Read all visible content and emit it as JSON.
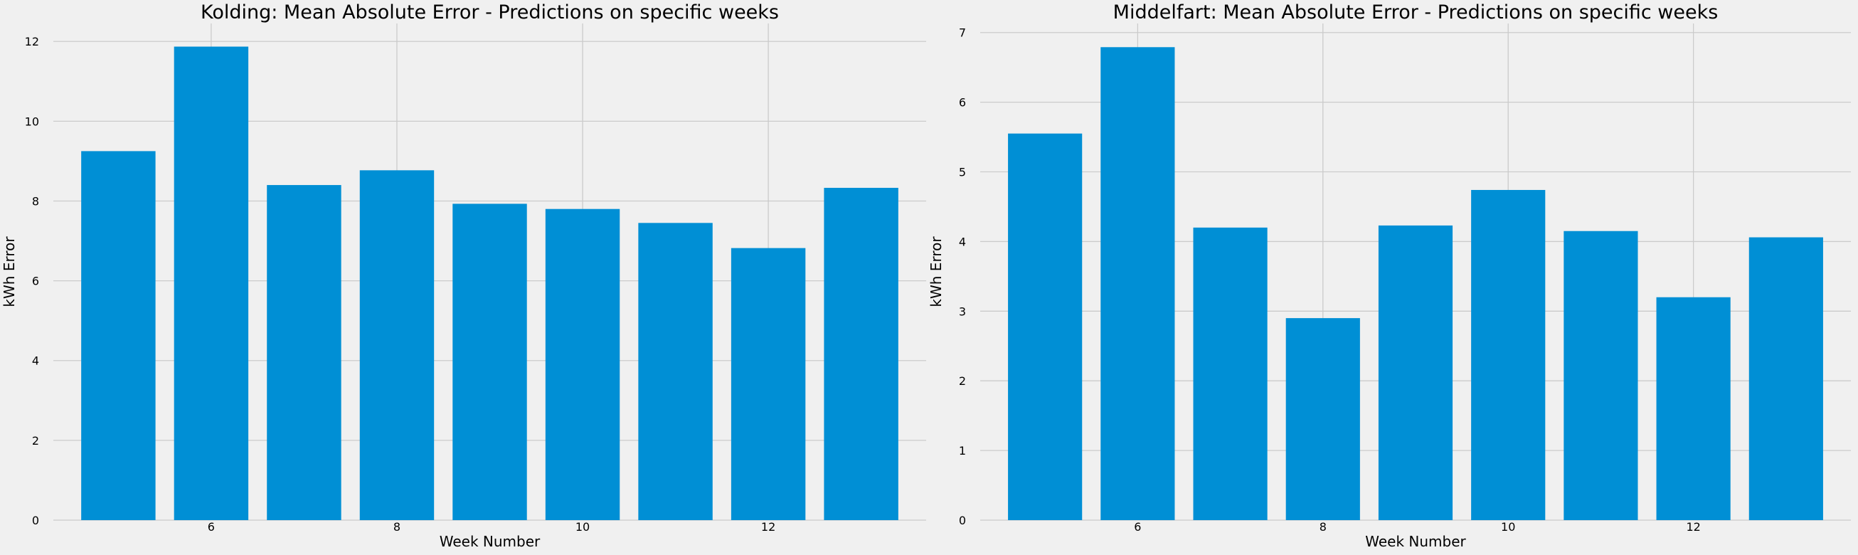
{
  "chart_data": [
    {
      "type": "bar",
      "title": "Kolding: Mean Absolute Error - Predictions on specific weeks",
      "xlabel": "Week Number",
      "ylabel": "kWh Error",
      "x": [
        5,
        6,
        7,
        8,
        9,
        10,
        11,
        12,
        13
      ],
      "values": [
        9.25,
        11.87,
        8.4,
        8.77,
        7.93,
        7.8,
        7.45,
        6.82,
        8.33
      ],
      "xticks": [
        6,
        8,
        10,
        12
      ],
      "yticks": [
        0,
        2,
        4,
        6,
        8,
        10,
        12
      ],
      "xlim": [
        4.3,
        13.7
      ],
      "ylim": [
        0,
        12.45
      ],
      "bar_color": "#008fd5",
      "grid": true
    },
    {
      "type": "bar",
      "title": "Middelfart: Mean Absolute Error - Predictions on specific weeks",
      "xlabel": "Week Number",
      "ylabel": "kWh Error",
      "x": [
        5,
        6,
        7,
        8,
        9,
        10,
        11,
        12,
        13
      ],
      "values": [
        5.55,
        6.79,
        4.2,
        2.9,
        4.23,
        4.74,
        4.15,
        3.2,
        4.06
      ],
      "xticks": [
        6,
        8,
        10,
        12
      ],
      "yticks": [
        0,
        1,
        2,
        3,
        4,
        5,
        6,
        7
      ],
      "xlim": [
        4.3,
        13.7
      ],
      "ylim": [
        0,
        7.13
      ],
      "bar_color": "#008fd5",
      "grid": true
    }
  ],
  "colors": {
    "background": "#f0f0f0",
    "grid": "#cbcbcb",
    "bar": "#008fd5"
  }
}
